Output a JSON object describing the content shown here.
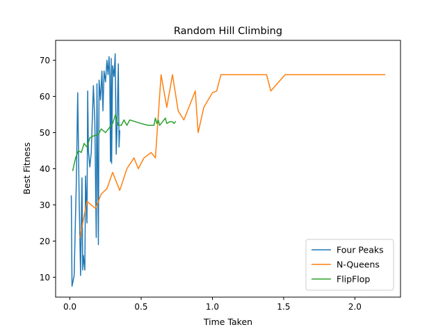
{
  "chart_data": {
    "type": "line",
    "title": "Random Hill Climbing",
    "xlabel": "Time Taken",
    "ylabel": "Best Fitness",
    "xlim": [
      -0.1,
      2.32
    ],
    "ylim": [
      4.5,
      75.5
    ],
    "xticks": [
      0.0,
      0.5,
      1.0,
      1.5,
      2.0
    ],
    "xtick_labels": [
      "0.0",
      "0.5",
      "1.0",
      "1.5",
      "2.0"
    ],
    "yticks": [
      10,
      20,
      30,
      40,
      50,
      60,
      70
    ],
    "ytick_labels": [
      "10",
      "20",
      "30",
      "40",
      "50",
      "60",
      "70"
    ],
    "grid": false,
    "legend_position": "lower-right",
    "series": [
      {
        "name": "Four Peaks",
        "color": "#1f77b4",
        "points": [
          [
            0.01,
            32.5
          ],
          [
            0.015,
            7.5
          ],
          [
            0.03,
            10.5
          ],
          [
            0.045,
            36
          ],
          [
            0.055,
            61
          ],
          [
            0.065,
            32
          ],
          [
            0.075,
            10.5
          ],
          [
            0.085,
            37.5
          ],
          [
            0.09,
            12
          ],
          [
            0.095,
            16
          ],
          [
            0.105,
            12
          ],
          [
            0.11,
            38
          ],
          [
            0.12,
            25
          ],
          [
            0.125,
            61.5
          ],
          [
            0.13,
            45
          ],
          [
            0.14,
            40.5
          ],
          [
            0.15,
            44.5
          ],
          [
            0.165,
            63
          ],
          [
            0.175,
            53
          ],
          [
            0.185,
            21
          ],
          [
            0.19,
            63.5
          ],
          [
            0.2,
            19
          ],
          [
            0.205,
            64.5
          ],
          [
            0.215,
            59
          ],
          [
            0.225,
            67
          ],
          [
            0.232,
            56
          ],
          [
            0.24,
            67
          ],
          [
            0.25,
            64
          ],
          [
            0.26,
            70
          ],
          [
            0.268,
            66
          ],
          [
            0.275,
            71
          ],
          [
            0.28,
            65.5
          ],
          [
            0.285,
            42
          ],
          [
            0.29,
            70.5
          ],
          [
            0.293,
            41.5
          ],
          [
            0.3,
            68.5
          ],
          [
            0.31,
            65.5
          ],
          [
            0.318,
            71.8
          ],
          [
            0.325,
            44
          ],
          [
            0.33,
            50
          ],
          [
            0.34,
            69
          ],
          [
            0.345,
            46
          ],
          [
            0.35,
            50.5
          ]
        ]
      },
      {
        "name": "N-Queens",
        "color": "#ff7f0e",
        "points": [
          [
            0.07,
            21
          ],
          [
            0.12,
            31
          ],
          [
            0.18,
            29
          ],
          [
            0.22,
            33
          ],
          [
            0.26,
            34.5
          ],
          [
            0.3,
            39
          ],
          [
            0.35,
            34
          ],
          [
            0.4,
            40
          ],
          [
            0.45,
            43
          ],
          [
            0.48,
            40
          ],
          [
            0.52,
            43
          ],
          [
            0.57,
            44.5
          ],
          [
            0.6,
            43
          ],
          [
            0.64,
            66
          ],
          [
            0.68,
            57
          ],
          [
            0.72,
            66
          ],
          [
            0.76,
            56
          ],
          [
            0.8,
            53.5
          ],
          [
            0.88,
            61.5
          ],
          [
            0.9,
            50
          ],
          [
            0.94,
            57
          ],
          [
            1.0,
            61
          ],
          [
            1.03,
            61.5
          ],
          [
            1.06,
            66
          ],
          [
            1.2,
            66
          ],
          [
            1.38,
            66
          ],
          [
            1.41,
            61.5
          ],
          [
            1.51,
            66
          ],
          [
            1.64,
            66
          ],
          [
            1.64,
            66
          ],
          [
            1.87,
            66
          ],
          [
            1.95,
            66
          ],
          [
            2.21,
            66
          ]
        ]
      },
      {
        "name": "FlipFlop",
        "color": "#2ca02c",
        "points": [
          [
            0.02,
            39.5
          ],
          [
            0.04,
            43
          ],
          [
            0.06,
            45
          ],
          [
            0.08,
            44.5
          ],
          [
            0.1,
            47
          ],
          [
            0.12,
            46
          ],
          [
            0.14,
            48.5
          ],
          [
            0.16,
            49
          ],
          [
            0.2,
            49.5
          ],
          [
            0.22,
            51
          ],
          [
            0.25,
            50
          ],
          [
            0.28,
            51.5
          ],
          [
            0.3,
            52.5
          ],
          [
            0.32,
            55
          ],
          [
            0.34,
            52
          ],
          [
            0.36,
            52
          ],
          [
            0.38,
            53.5
          ],
          [
            0.4,
            52
          ],
          [
            0.42,
            53.5
          ],
          [
            0.46,
            53
          ],
          [
            0.5,
            52.5
          ],
          [
            0.55,
            52
          ],
          [
            0.59,
            52
          ],
          [
            0.6,
            54
          ],
          [
            0.61,
            52.5
          ],
          [
            0.62,
            53.5
          ],
          [
            0.63,
            52
          ],
          [
            0.65,
            53
          ],
          [
            0.67,
            54
          ],
          [
            0.68,
            52.5
          ],
          [
            0.7,
            53
          ],
          [
            0.72,
            53
          ],
          [
            0.73,
            52.5
          ],
          [
            0.74,
            53
          ]
        ]
      }
    ]
  }
}
